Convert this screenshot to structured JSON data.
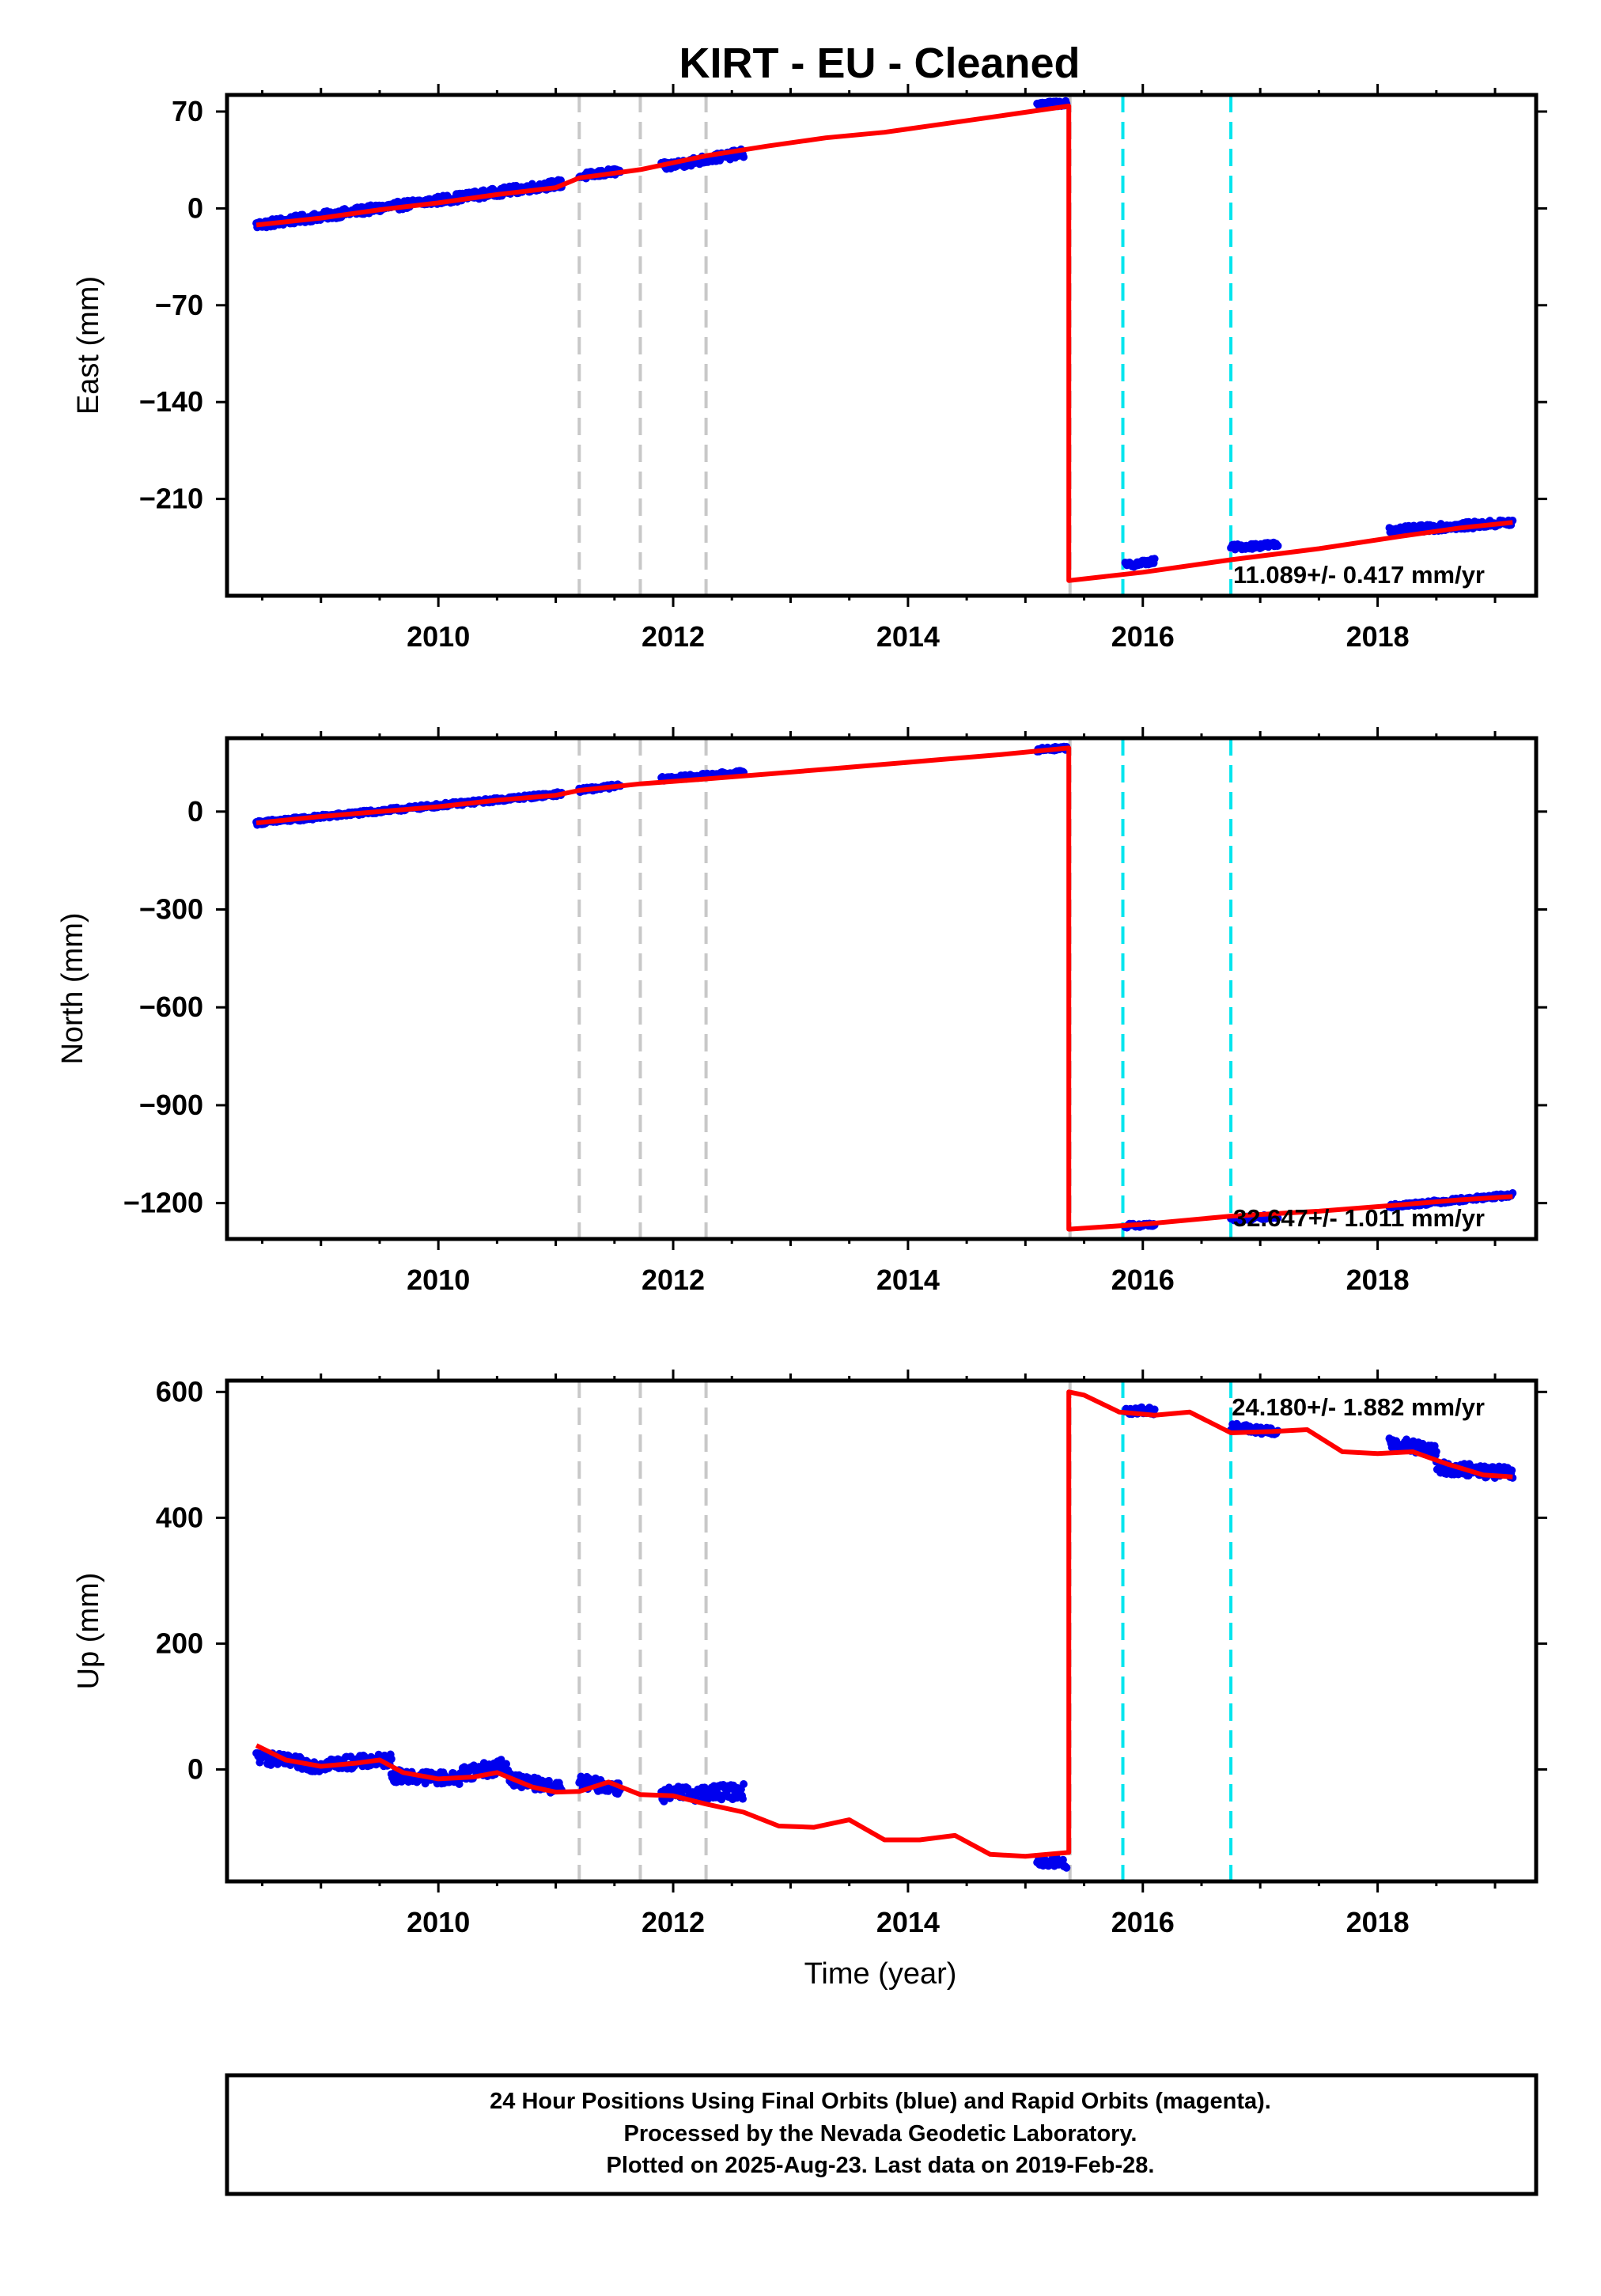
{
  "title": "KIRT  - EU - Cleaned",
  "xlabel": "Time (year)",
  "footer": {
    "line1": "24 Hour Positions Using Final Orbits (blue) and Rapid Orbits (magenta).",
    "line2": "Processed by the Nevada Geodetic Laboratory.",
    "line3": "Plotted on 2025-Aug-23. Last data on 2019-Feb-28."
  },
  "colors": {
    "data": "#0000ee",
    "model": "#ff0000",
    "equipment_change": "#c8c8c8",
    "earthquake": "#00e5ee"
  },
  "chart_data": [
    {
      "type": "scatter",
      "panel": "east",
      "ylabel": "East (mm)",
      "rate_label": "11.089+/- 0.417 mm/yr",
      "xlim": [
        2008.2,
        2019.35
      ],
      "ylim": [
        -280,
        82
      ],
      "yticks": [
        70,
        0,
        -70,
        -140,
        -210
      ],
      "xticks": [
        2010,
        2012,
        2014,
        2016,
        2018
      ],
      "equipment_change_years": [
        2011.2,
        2011.72,
        2012.28,
        2015.38
      ],
      "earthquake_years": [
        2015.83,
        2016.75
      ],
      "data_segments": [
        {
          "x": [
            2008.45,
            2011.05
          ],
          "y": [
            -12,
            18
          ],
          "noise": 3
        },
        {
          "x": [
            2011.2,
            2011.55
          ],
          "y": [
            23,
            27
          ],
          "noise": 2.5
        },
        {
          "x": [
            2011.9,
            2012.6
          ],
          "y": [
            30,
            40
          ],
          "noise": 3
        },
        {
          "x": [
            2015.1,
            2015.35
          ],
          "y": [
            75,
            76
          ],
          "noise": 2
        },
        {
          "x": [
            2015.85,
            2016.1
          ],
          "y": [
            -258,
            -255
          ],
          "noise": 2
        },
        {
          "x": [
            2016.75,
            2017.15
          ],
          "y": [
            -245,
            -243
          ],
          "noise": 2
        },
        {
          "x": [
            2018.1,
            2019.15
          ],
          "y": [
            -233,
            -227
          ],
          "noise": 2.5
        }
      ],
      "model": {
        "x": [
          2008.45,
          2009.0,
          2009.5,
          2010.0,
          2010.5,
          2011.0,
          2011.2,
          2011.72,
          2012.28,
          2012.8,
          2013.3,
          2013.8,
          2014.3,
          2014.8,
          2015.37,
          2015.37,
          2016.0,
          2016.75,
          2017.5,
          2018.2,
          2018.7,
          2019.15
        ],
        "y": [
          -12,
          -7,
          -1,
          4,
          10,
          15,
          22,
          28,
          38,
          45,
          51,
          55,
          61,
          67,
          74,
          -269,
          -263,
          -254,
          -246,
          -237,
          -231,
          -227
        ]
      }
    },
    {
      "type": "scatter",
      "panel": "north",
      "ylabel": "North (mm)",
      "rate_label": "32.647+/- 1.011 mm/yr",
      "xlim": [
        2008.2,
        2019.35
      ],
      "ylim": [
        -1310,
        225
      ],
      "yticks": [
        0,
        -300,
        -600,
        -900,
        -1200
      ],
      "xticks": [
        2010,
        2012,
        2014,
        2016,
        2018
      ],
      "equipment_change_years": [
        2011.2,
        2011.72,
        2012.28,
        2015.38
      ],
      "earthquake_years": [
        2015.83,
        2016.75
      ],
      "data_segments": [
        {
          "x": [
            2008.45,
            2011.05
          ],
          "y": [
            -35,
            55
          ],
          "noise": 6
        },
        {
          "x": [
            2011.2,
            2011.55
          ],
          "y": [
            65,
            80
          ],
          "noise": 6
        },
        {
          "x": [
            2011.9,
            2012.6
          ],
          "y": [
            100,
            120
          ],
          "noise": 6
        },
        {
          "x": [
            2015.1,
            2015.35
          ],
          "y": [
            190,
            195
          ],
          "noise": 6
        },
        {
          "x": [
            2015.85,
            2016.1
          ],
          "y": [
            -1270,
            -1265
          ],
          "noise": 6
        },
        {
          "x": [
            2016.75,
            2017.15
          ],
          "y": [
            -1250,
            -1240
          ],
          "noise": 6
        },
        {
          "x": [
            2018.1,
            2019.15
          ],
          "y": [
            -1210,
            -1175
          ],
          "noise": 6
        }
      ],
      "model": {
        "x": [
          2008.45,
          2009.0,
          2009.5,
          2010.0,
          2010.5,
          2011.0,
          2011.2,
          2011.72,
          2012.28,
          2012.8,
          2013.3,
          2013.8,
          2014.3,
          2014.8,
          2015.37,
          2015.37,
          2016.0,
          2016.75,
          2017.5,
          2018.2,
          2018.7,
          2019.15
        ],
        "y": [
          -35,
          -15,
          0,
          15,
          35,
          50,
          65,
          85,
          100,
          115,
          130,
          145,
          160,
          175,
          195,
          -1280,
          -1265,
          -1240,
          -1225,
          -1205,
          -1190,
          -1180
        ]
      }
    },
    {
      "type": "scatter",
      "panel": "up",
      "ylabel": "Up (mm)",
      "rate_label": "24.180+/- 1.882 mm/yr",
      "xlim": [
        2008.2,
        2019.35
      ],
      "ylim": [
        -178,
        618
      ],
      "yticks": [
        600,
        400,
        200,
        0
      ],
      "xticks": [
        2010,
        2012,
        2014,
        2016,
        2018
      ],
      "equipment_change_years": [
        2011.2,
        2011.72,
        2012.28,
        2015.38
      ],
      "earthquake_years": [
        2015.83,
        2016.75
      ],
      "data_segments": [
        {
          "x": [
            2008.45,
            2009.0
          ],
          "y": [
            20,
            5
          ],
          "noise": 10
        },
        {
          "x": [
            2009.0,
            2009.6
          ],
          "y": [
            8,
            15
          ],
          "noise": 10
        },
        {
          "x": [
            2009.6,
            2010.2
          ],
          "y": [
            -10,
            -15
          ],
          "noise": 10
        },
        {
          "x": [
            2010.2,
            2010.6
          ],
          "y": [
            -5,
            5
          ],
          "noise": 12
        },
        {
          "x": [
            2010.6,
            2011.05
          ],
          "y": [
            -15,
            -30
          ],
          "noise": 10
        },
        {
          "x": [
            2011.2,
            2011.55
          ],
          "y": [
            -20,
            -30
          ],
          "noise": 10
        },
        {
          "x": [
            2011.9,
            2012.6
          ],
          "y": [
            -40,
            -35
          ],
          "noise": 12
        },
        {
          "x": [
            2015.1,
            2015.35
          ],
          "y": [
            -145,
            -150
          ],
          "noise": 8
        },
        {
          "x": [
            2015.85,
            2016.1
          ],
          "y": [
            570,
            570
          ],
          "noise": 6
        },
        {
          "x": [
            2016.75,
            2017.15
          ],
          "y": [
            545,
            535
          ],
          "noise": 6
        },
        {
          "x": [
            2018.1,
            2018.5
          ],
          "y": [
            520,
            505
          ],
          "noise": 10
        },
        {
          "x": [
            2018.5,
            2019.15
          ],
          "y": [
            480,
            470
          ],
          "noise": 10
        }
      ],
      "model": {
        "x": [
          2008.45,
          2008.7,
          2009.0,
          2009.3,
          2009.5,
          2009.7,
          2010.0,
          2010.3,
          2010.5,
          2010.8,
          2011.0,
          2011.2,
          2011.45,
          2011.72,
          2012.0,
          2012.28,
          2012.6,
          2012.9,
          2013.2,
          2013.5,
          2013.8,
          2014.1,
          2014.4,
          2014.7,
          2015.0,
          2015.37,
          2015.37,
          2015.5,
          2015.8,
          2016.1,
          2016.4,
          2016.75,
          2017.1,
          2017.4,
          2017.7,
          2018.0,
          2018.3,
          2018.6,
          2018.9,
          2019.15
        ],
        "y": [
          38,
          15,
          5,
          10,
          15,
          -5,
          -15,
          -12,
          -5,
          -28,
          -36,
          -35,
          -20,
          -40,
          -42,
          -55,
          -68,
          -90,
          -92,
          -80,
          -112,
          -112,
          -105,
          -135,
          -138,
          -132,
          600,
          595,
          568,
          563,
          568,
          535,
          537,
          540,
          505,
          502,
          505,
          485,
          468,
          465
        ]
      }
    }
  ]
}
